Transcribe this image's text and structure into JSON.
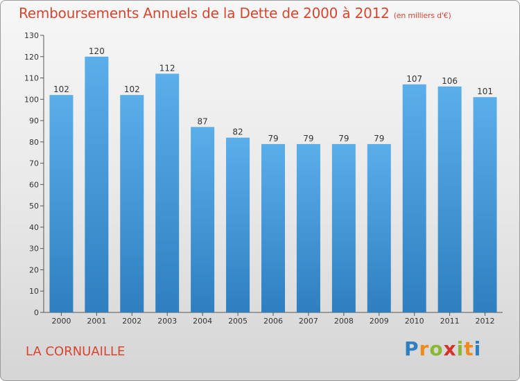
{
  "title": "Remboursements Annuels de la Dette de 2000 à 2012",
  "subtitle": "(en milliers d'€)",
  "commune": "LA CORNUAILLE",
  "logo": {
    "letters": [
      "P",
      "r",
      "o",
      "x",
      "i",
      "t",
      "i"
    ],
    "colors": [
      "#2e7fc1",
      "#f08a1c",
      "#8ab833",
      "#d6312a",
      "#8ab833",
      "#f08a1c",
      "#2e7fc1"
    ]
  },
  "colors": {
    "title": "#d8452f",
    "bar_top": "#5aaeea",
    "bar_bottom": "#2f7fc0",
    "axis": "#555555",
    "grid": "#cfcfcf"
  },
  "chart_data": {
    "type": "bar",
    "categories": [
      "2000",
      "2001",
      "2002",
      "2003",
      "2004",
      "2005",
      "2006",
      "2007",
      "2008",
      "2009",
      "2010",
      "2011",
      "2012"
    ],
    "values": [
      102,
      120,
      102,
      112,
      87,
      82,
      79,
      79,
      79,
      79,
      107,
      106,
      101
    ],
    "ylim": [
      0,
      130
    ],
    "yticks": [
      0,
      10,
      20,
      30,
      40,
      50,
      60,
      70,
      80,
      90,
      100,
      110,
      120,
      130
    ],
    "grid": false,
    "data_labels": true
  }
}
